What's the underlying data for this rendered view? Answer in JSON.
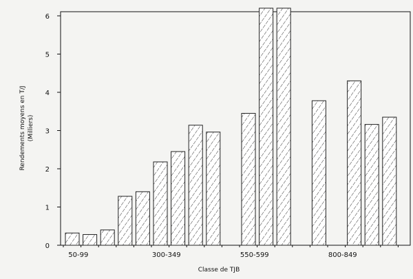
{
  "chart_data": {
    "type": "bar",
    "xlabel": "Classe de TJB",
    "ylabel": "Rendements moyens en T/J",
    "ylabel_sub": "(Milliers)",
    "ylim": [
      0,
      6.1
    ],
    "yticks": [
      0,
      1,
      2,
      3,
      4,
      5,
      6
    ],
    "x_tick_labels": [
      "50-99",
      "300-349",
      "550-599",
      "800-849"
    ],
    "bars": [
      {
        "slot": 0,
        "value": 0.32
      },
      {
        "slot": 1,
        "value": 0.28
      },
      {
        "slot": 2,
        "value": 0.4
      },
      {
        "slot": 3,
        "value": 1.28
      },
      {
        "slot": 4,
        "value": 1.4
      },
      {
        "slot": 5,
        "value": 2.18
      },
      {
        "slot": 6,
        "value": 2.45
      },
      {
        "slot": 7,
        "value": 3.14
      },
      {
        "slot": 8,
        "value": 2.96
      },
      {
        "slot": 10,
        "value": 3.45
      },
      {
        "slot": 11,
        "value": 6.2
      },
      {
        "slot": 12,
        "value": 6.2
      },
      {
        "slot": 14,
        "value": 3.78
      },
      {
        "slot": 16,
        "value": 4.3
      },
      {
        "slot": 17,
        "value": 3.16
      },
      {
        "slot": 18,
        "value": 3.35
      }
    ],
    "grid": false,
    "hatch": "diagonal",
    "bar_fill": "#ffffff",
    "bar_stroke": "#222222"
  }
}
